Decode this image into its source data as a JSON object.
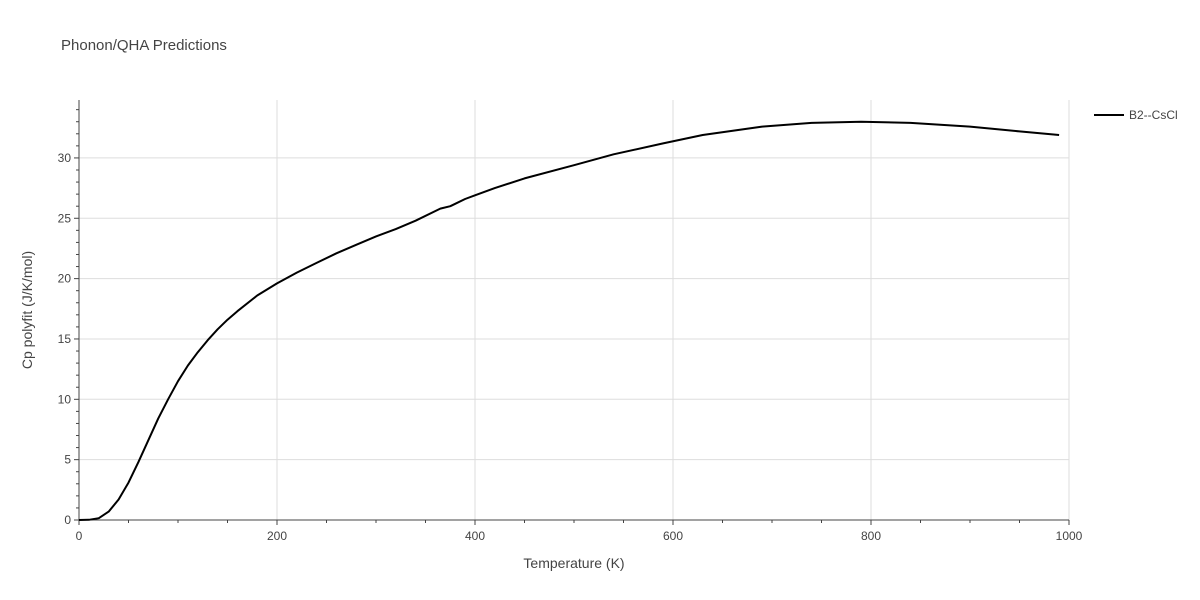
{
  "chart_data": {
    "type": "line",
    "title": "Phonon/QHA Predictions",
    "xlabel": "Temperature (K)",
    "ylabel": "Cp polyfit (J/K/mol)",
    "xlim": [
      0,
      1000
    ],
    "ylim": [
      0,
      34.8
    ],
    "xticks": [
      0,
      200,
      400,
      600,
      800,
      1000
    ],
    "yticks": [
      0,
      5,
      10,
      15,
      20,
      25,
      30
    ],
    "grid": true,
    "legend_position": "top-right",
    "series": [
      {
        "name": "B2--CsCl",
        "color": "#000000",
        "x": [
          0,
          10,
          20,
          30,
          40,
          50,
          60,
          70,
          80,
          90,
          100,
          110,
          120,
          130,
          140,
          150,
          160,
          180,
          200,
          220,
          240,
          260,
          280,
          300,
          320,
          340,
          365,
          375,
          380,
          390,
          400,
          420,
          450,
          500,
          540,
          590,
          630,
          690,
          740,
          790,
          840,
          900,
          950,
          990
        ],
        "y": [
          0,
          0.02,
          0.15,
          0.7,
          1.7,
          3.1,
          4.8,
          6.6,
          8.4,
          10.0,
          11.5,
          12.8,
          13.9,
          14.9,
          15.8,
          16.6,
          17.3,
          18.6,
          19.6,
          20.5,
          21.3,
          22.1,
          22.8,
          23.5,
          24.1,
          24.8,
          25.8,
          26.0,
          26.2,
          26.6,
          26.9,
          27.5,
          28.3,
          29.4,
          30.3,
          31.2,
          31.9,
          32.6,
          32.9,
          33.0,
          32.9,
          32.6,
          32.2,
          31.9
        ]
      }
    ]
  }
}
